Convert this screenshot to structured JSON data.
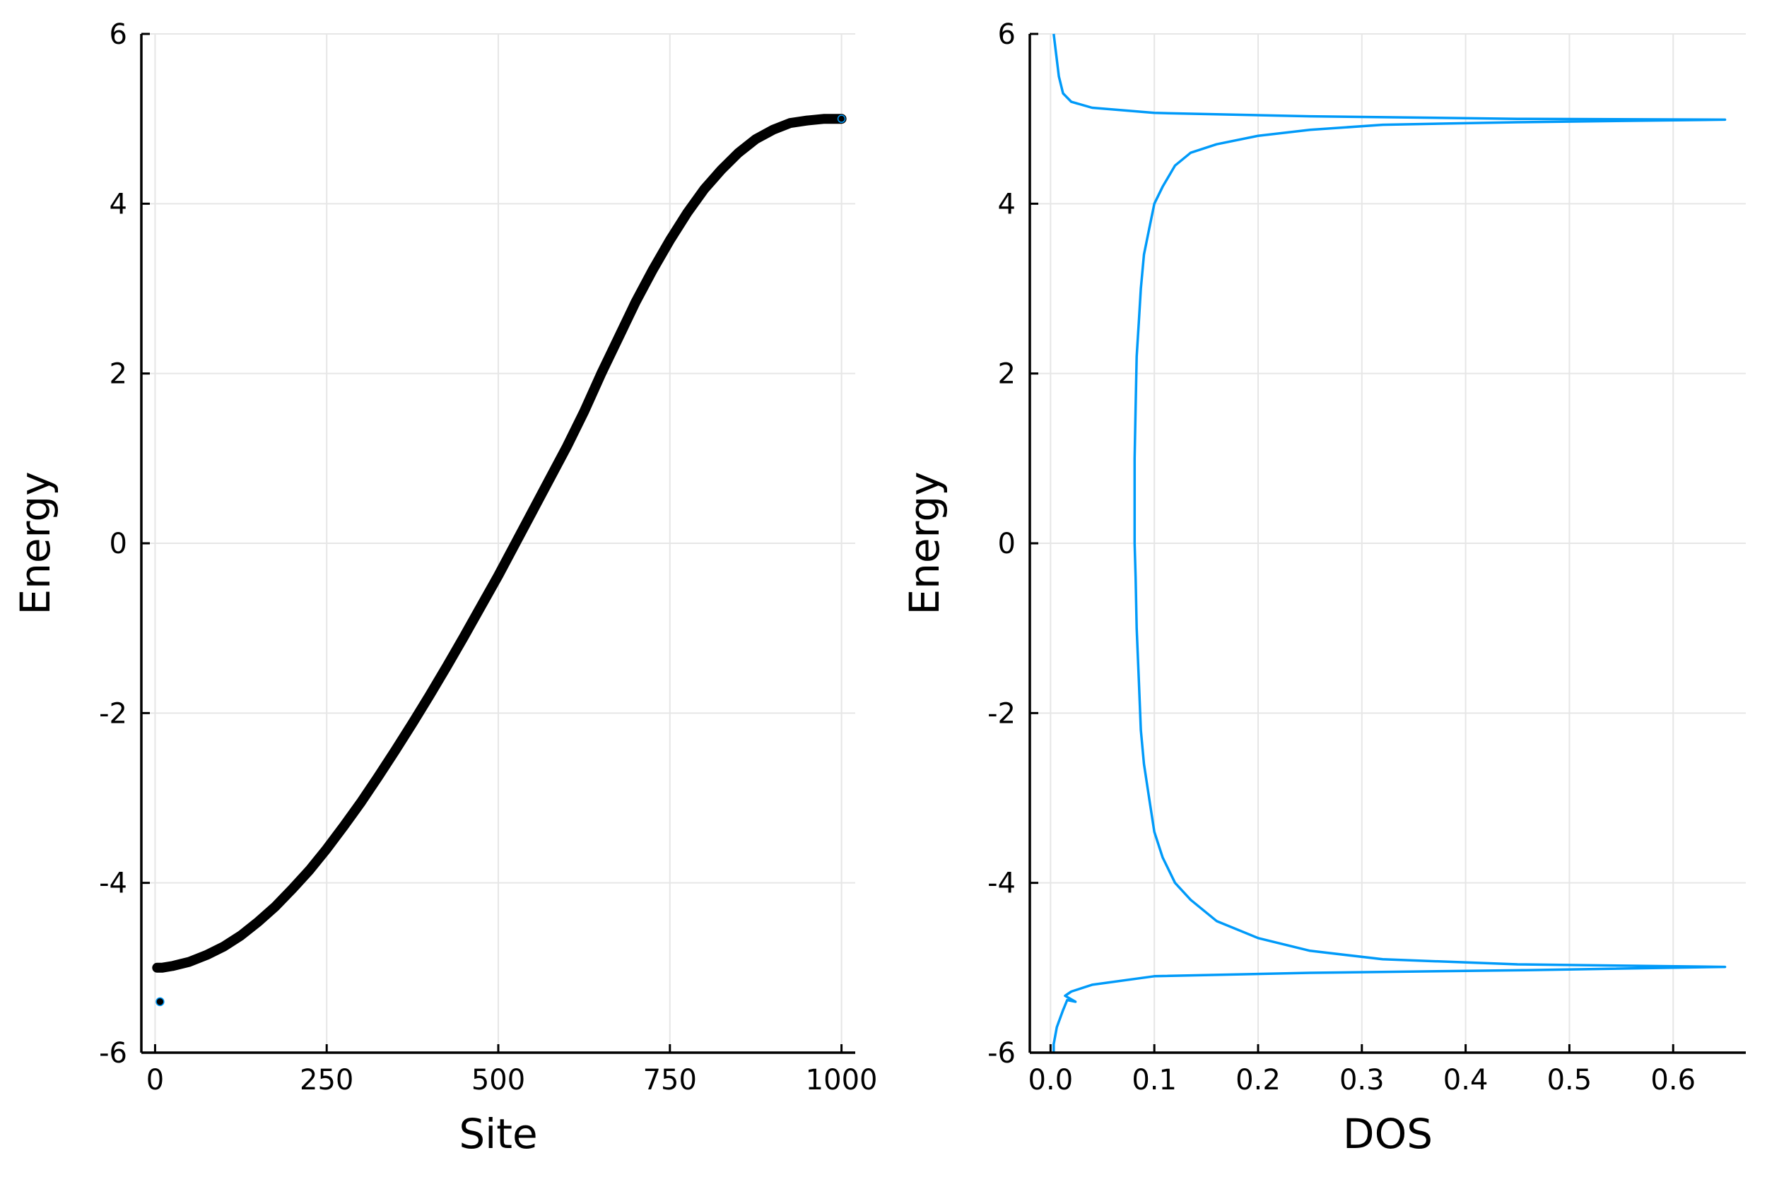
{
  "colors": {
    "scatter_fill": "#000000",
    "scatter_edge": "#009af9",
    "dos_line": "#009af9",
    "grid": "#e6e6e6",
    "axis": "#000000"
  },
  "chart_data": [
    {
      "type": "scatter",
      "xlabel": "Site",
      "ylabel": "Energy",
      "xlim": [
        -20,
        1020
      ],
      "ylim": [
        -6,
        6
      ],
      "xticks": [
        0,
        250,
        500,
        750,
        1000
      ],
      "xtick_labels": [
        "0",
        "250",
        "500",
        "750",
        "1000"
      ],
      "yticks": [
        -6,
        -4,
        -2,
        0,
        2,
        4,
        6
      ],
      "ytick_labels": [
        "-6",
        "-4",
        "-2",
        "0",
        "2",
        "4",
        "6"
      ],
      "grid": true,
      "legend": "none",
      "outlier": {
        "x": 1,
        "y": -5.4
      },
      "points": [
        [
          3,
          -5.0
        ],
        [
          10,
          -5.0
        ],
        [
          25,
          -4.98
        ],
        [
          50,
          -4.93
        ],
        [
          75,
          -4.85
        ],
        [
          100,
          -4.75
        ],
        [
          125,
          -4.62
        ],
        [
          150,
          -4.46
        ],
        [
          175,
          -4.28
        ],
        [
          200,
          -4.07
        ],
        [
          225,
          -3.85
        ],
        [
          250,
          -3.6
        ],
        [
          275,
          -3.33
        ],
        [
          300,
          -3.05
        ],
        [
          325,
          -2.75
        ],
        [
          350,
          -2.44
        ],
        [
          375,
          -2.12
        ],
        [
          400,
          -1.79
        ],
        [
          425,
          -1.45
        ],
        [
          450,
          -1.1
        ],
        [
          475,
          -0.74
        ],
        [
          500,
          -0.38
        ],
        [
          525,
          0.0
        ],
        [
          550,
          0.38
        ],
        [
          575,
          0.76
        ],
        [
          600,
          1.14
        ],
        [
          625,
          1.55
        ],
        [
          650,
          2.0
        ],
        [
          675,
          2.42
        ],
        [
          700,
          2.84
        ],
        [
          725,
          3.22
        ],
        [
          750,
          3.57
        ],
        [
          775,
          3.89
        ],
        [
          800,
          4.17
        ],
        [
          825,
          4.4
        ],
        [
          850,
          4.6
        ],
        [
          875,
          4.76
        ],
        [
          900,
          4.87
        ],
        [
          925,
          4.95
        ],
        [
          950,
          4.98
        ],
        [
          975,
          5.0
        ],
        [
          1000,
          5.0
        ]
      ]
    },
    {
      "type": "line",
      "xlabel": "DOS",
      "ylabel": "Energy",
      "xlim": [
        -0.02,
        0.67
      ],
      "ylim": [
        -6,
        6
      ],
      "xticks": [
        0.0,
        0.1,
        0.2,
        0.3,
        0.4,
        0.5,
        0.6
      ],
      "xtick_labels": [
        "0.0",
        "0.1",
        "0.2",
        "0.3",
        "0.4",
        "0.5",
        "0.6"
      ],
      "yticks": [
        -6,
        -4,
        -2,
        0,
        2,
        4,
        6
      ],
      "ytick_labels": [
        "-6",
        "-4",
        "-2",
        "0",
        "2",
        "4",
        "6"
      ],
      "grid": true,
      "legend": "none",
      "series": [
        {
          "x": [
            0.003,
            0.003,
            0.006,
            0.012,
            0.016,
            0.024,
            0.014,
            0.02,
            0.04,
            0.1,
            0.25,
            0.45,
            0.65,
            0.45,
            0.32,
            0.25,
            0.2,
            0.16,
            0.135,
            0.12,
            0.108,
            0.1,
            0.095,
            0.09,
            0.087,
            0.085,
            0.083,
            0.082,
            0.081,
            0.081,
            0.081,
            0.082,
            0.083,
            0.085,
            0.087,
            0.09,
            0.095,
            0.1,
            0.108,
            0.12,
            0.135,
            0.16,
            0.2,
            0.25,
            0.32,
            0.45,
            0.65,
            0.45,
            0.25,
            0.1,
            0.04,
            0.02,
            0.012,
            0.008,
            0.005,
            0.003
          ],
          "y": [
            -6.0,
            -5.9,
            -5.7,
            -5.5,
            -5.38,
            -5.4,
            -5.33,
            -5.28,
            -5.2,
            -5.1,
            -5.06,
            -5.03,
            -4.99,
            -4.96,
            -4.9,
            -4.8,
            -4.65,
            -4.45,
            -4.2,
            -4.0,
            -3.7,
            -3.4,
            -3.0,
            -2.6,
            -2.2,
            -1.6,
            -1.0,
            -0.4,
            0.0,
            0.4,
            1.0,
            1.6,
            2.2,
            2.6,
            3.0,
            3.4,
            3.7,
            4.0,
            4.2,
            4.45,
            4.6,
            4.7,
            4.8,
            4.87,
            4.93,
            4.96,
            4.99,
            5.0,
            5.03,
            5.07,
            5.13,
            5.2,
            5.3,
            5.5,
            5.8,
            6.0
          ]
        }
      ]
    }
  ]
}
